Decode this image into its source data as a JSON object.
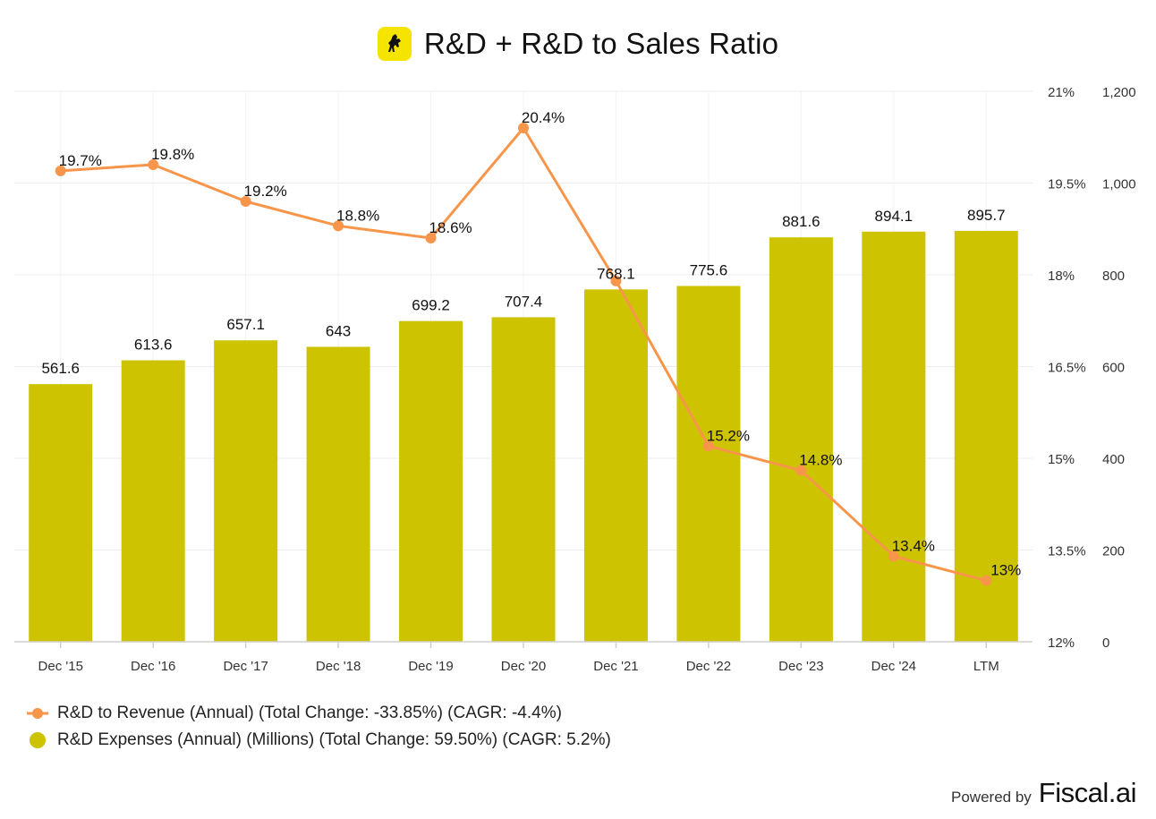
{
  "title": "R&D + R&D to Sales Ratio",
  "logo_icon": "prancing-horse-icon",
  "colors": {
    "bar": "#cdc300",
    "line": "#f7964a",
    "grid": "#ececec",
    "axis": "#cfcfcf",
    "logo_bg": "#f5e400"
  },
  "chart_data": {
    "type": "bar",
    "categories": [
      "Dec '15",
      "Dec '16",
      "Dec '17",
      "Dec '18",
      "Dec '19",
      "Dec '20",
      "Dec '21",
      "Dec '22",
      "Dec '23",
      "Dec '24",
      "LTM"
    ],
    "series": [
      {
        "name": "R&D Expenses (Annual) (Millions) (Total Change: 59.50%) (CAGR: 5.2%)",
        "type": "bar",
        "axis": "right-outer",
        "values": [
          561.6,
          613.6,
          657.1,
          643,
          699.2,
          707.4,
          768.1,
          775.6,
          881.6,
          894.1,
          895.7
        ],
        "labels": [
          "561.6",
          "613.6",
          "657.1",
          "643",
          "699.2",
          "707.4",
          "768.1",
          "775.6",
          "881.6",
          "894.1",
          "895.7"
        ]
      },
      {
        "name": "R&D to Revenue (Annual) (Total Change: -33.85%) (CAGR: -4.4%)",
        "type": "line",
        "axis": "right-inner",
        "values": [
          19.7,
          19.8,
          19.2,
          18.8,
          18.6,
          20.4,
          17.9,
          15.2,
          14.8,
          13.4,
          13.0
        ],
        "labels": [
          "19.7%",
          "19.8%",
          "19.2%",
          "18.8%",
          "18.6%",
          "20.4%",
          "",
          "15.2%",
          "14.8%",
          "13.4%",
          "13%"
        ]
      }
    ],
    "y_left_ratio": {
      "min": 12,
      "max": 21,
      "ticks": [
        12,
        13.5,
        15,
        16.5,
        18,
        19.5,
        21
      ],
      "tick_labels": [
        "12%",
        "13.5%",
        "15%",
        "16.5%",
        "18%",
        "19.5%",
        "21%"
      ]
    },
    "y_right_expense": {
      "min": 0,
      "max": 1200,
      "ticks": [
        0,
        200,
        400,
        600,
        800,
        1000,
        1200
      ],
      "tick_labels": [
        "0",
        "200",
        "400",
        "600",
        "800",
        "1,000",
        "1,200"
      ]
    },
    "grid": true,
    "legend_position": "bottom-left"
  },
  "legend": {
    "line_label": "R&D to Revenue (Annual) (Total Change: -33.85%) (CAGR: -4.4%)",
    "bar_label": "R&D Expenses (Annual) (Millions) (Total Change: 59.50%) (CAGR: 5.2%)"
  },
  "footer": {
    "powered_by": "Powered by",
    "brand": "Fiscal.ai"
  }
}
